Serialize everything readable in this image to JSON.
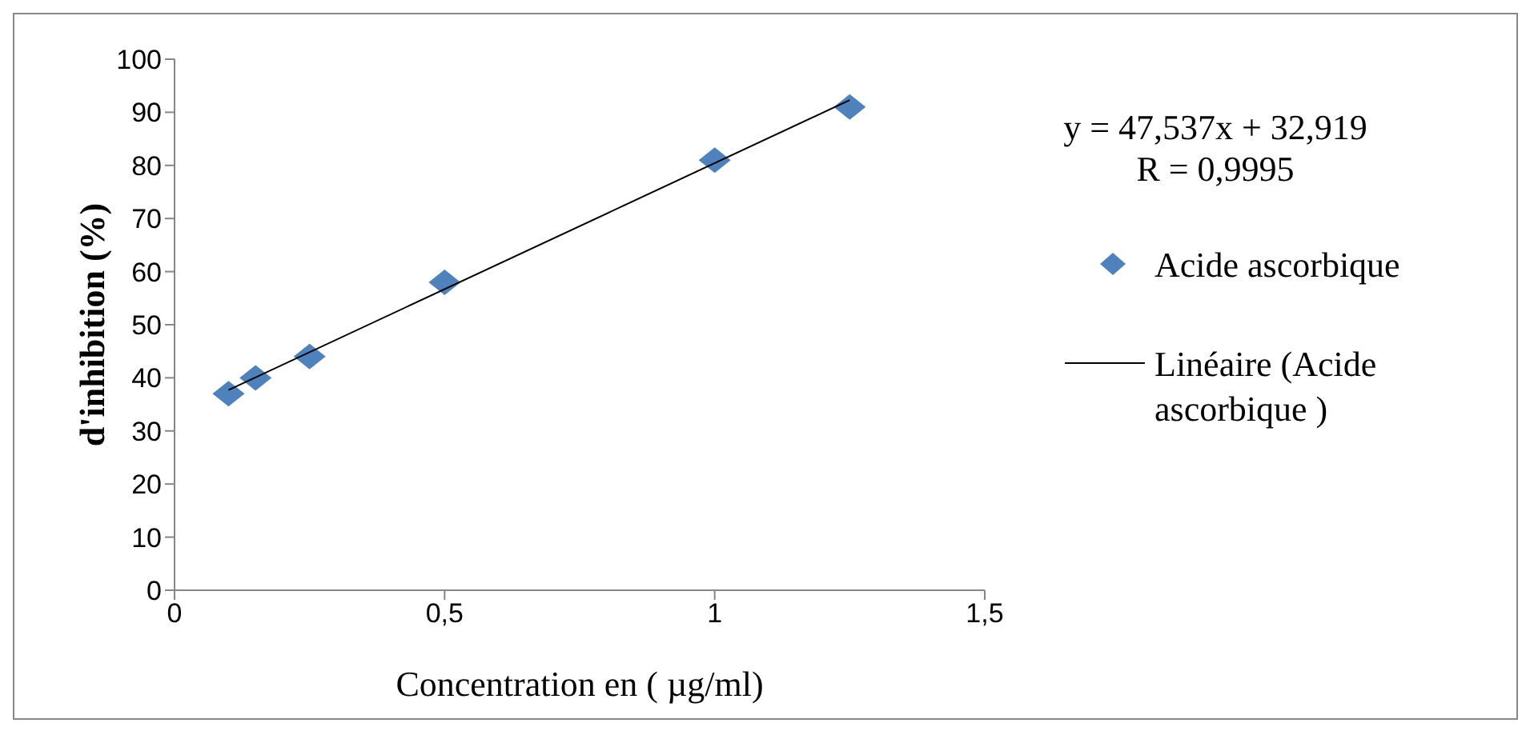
{
  "chart_data": {
    "type": "scatter",
    "xlabel": "Concentration en ( µg/ml)",
    "ylabel": "d'inhibition (%)",
    "xlim": [
      0,
      1.5
    ],
    "xticks": [
      0,
      {
        "value": 0.5,
        "label": "0,5"
      },
      1,
      {
        "value": 1.5,
        "label": "1,5"
      }
    ],
    "ylim": [
      0,
      100
    ],
    "yticks": [
      0,
      10,
      20,
      30,
      40,
      50,
      60,
      70,
      80,
      90,
      100
    ],
    "grid": false,
    "legend": "right",
    "marker": "diamond",
    "annotations": [
      "y = 47,537x + 32,919",
      "R = 0,9995"
    ],
    "series": [
      {
        "name": "Acide ascorbique",
        "color": "#4f81bd",
        "x": [
          0.1,
          0.15,
          0.25,
          0.5,
          1,
          1.25
        ],
        "values": [
          37,
          40,
          44,
          58,
          81,
          91
        ]
      },
      {
        "name": "Linéaire (Acide ascorbique )",
        "type": "line",
        "color": "#000000",
        "marker": "none",
        "x": [
          0.1,
          1.25
        ],
        "values": [
          37.7,
          92.3
        ]
      }
    ]
  }
}
